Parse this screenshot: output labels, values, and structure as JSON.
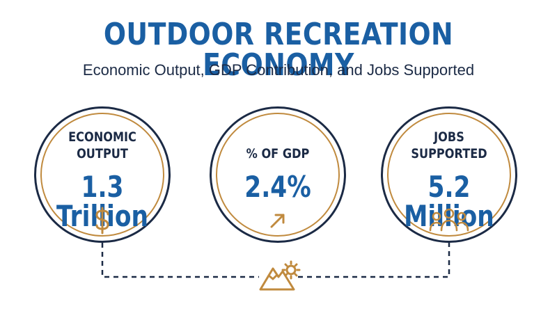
{
  "header": {
    "title": "OUTDOOR RECREATION ECONOMY",
    "subtitle": "Economic Output, GDP Contribution, and Jobs Supported"
  },
  "stats": [
    {
      "label_line1": "ECONOMIC",
      "label_line2": "OUTPUT",
      "value": "1.3 Trillion",
      "icon": "dollar-icon"
    },
    {
      "label_line1": "% OF GDP",
      "label_line2": "",
      "value": "2.4%",
      "icon": "arrow-up-right-icon"
    },
    {
      "label_line1": "JOBS",
      "label_line2": "SUPPORTED",
      "value": "5.2 Million",
      "icon": "people-icon"
    }
  ],
  "connector_icon": "mountain-gear-icon",
  "colors": {
    "primary_blue": "#1a5fa3",
    "navy": "#1b2a45",
    "gold": "#c08a3e"
  }
}
